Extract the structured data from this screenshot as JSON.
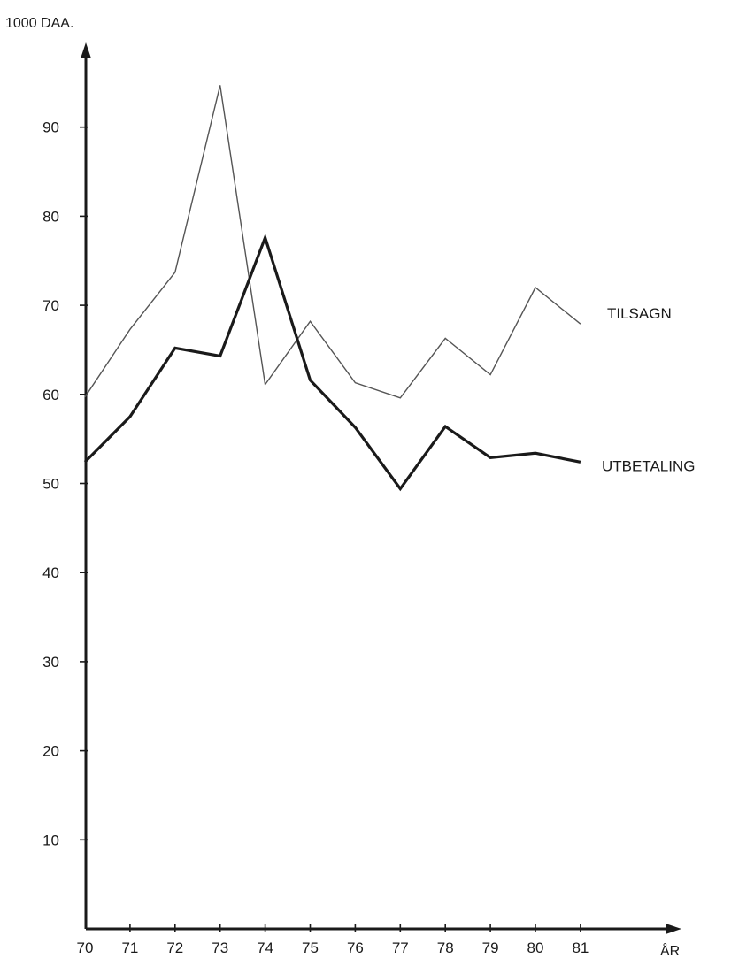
{
  "chart_data": {
    "type": "line",
    "ylabel": "1000 DAA.",
    "xlabel": "ÅR",
    "categories": [
      "70",
      "71",
      "72",
      "73",
      "74",
      "75",
      "76",
      "77",
      "78",
      "79",
      "80",
      "81"
    ],
    "ylim": [
      0,
      95
    ],
    "yticks": [
      10,
      20,
      30,
      40,
      50,
      60,
      70,
      80,
      90
    ],
    "grid": false,
    "series": [
      {
        "name": "TILSAGN",
        "values": [
          59.7,
          67.3,
          73.7,
          94.7,
          61.1,
          68.2,
          61.3,
          59.6,
          66.3,
          62.2,
          72.0,
          67.9
        ],
        "color": "#555555",
        "weight": "thin"
      },
      {
        "name": "UTBETALING",
        "values": [
          52.4,
          57.5,
          65.2,
          64.3,
          77.6,
          61.6,
          56.3,
          49.4,
          56.4,
          52.9,
          53.4,
          52.4
        ],
        "color": "#1a1a1a",
        "weight": "thick"
      }
    ]
  }
}
